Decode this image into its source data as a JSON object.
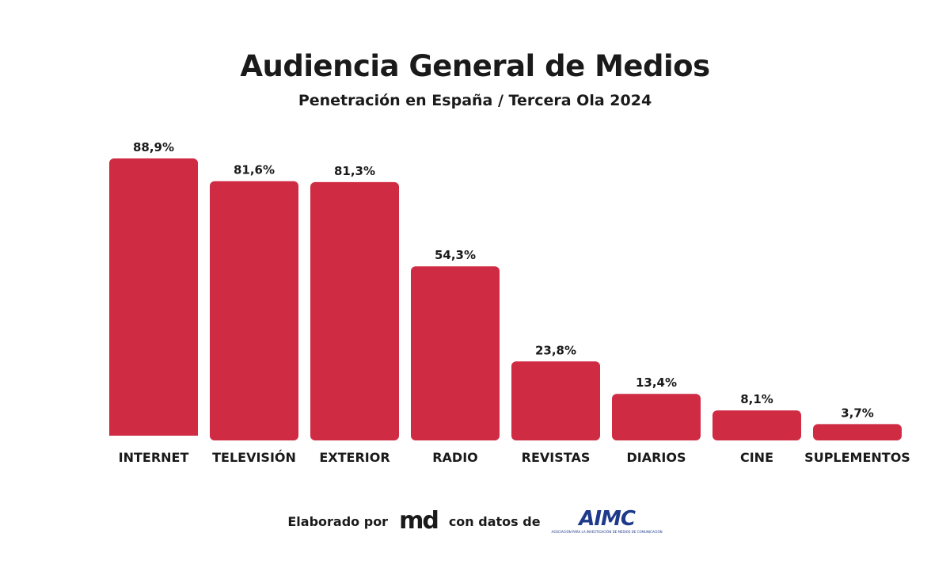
{
  "header": {
    "title": "Audiencia General de Medios",
    "subtitle": "Penetración en España / Tercera Ola 2024"
  },
  "footer": {
    "prefix": "Elaborado por",
    "md_logo": "md",
    "middle": "con datos de",
    "aimc_logo": "AIMC",
    "aimc_tagline": "ASOCIACIÓN PARA LA INVESTIGACIÓN DE MEDIOS DE COMUNICACIÓN"
  },
  "colors": {
    "bar": "#cf2b43",
    "text": "#1a1a1a",
    "aimc": "#1f3a8a"
  },
  "chart_data": {
    "type": "bar",
    "title": "Audiencia General de Medios",
    "subtitle": "Penetración en España / Tercera Ola 2024",
    "categories": [
      "INTERNET",
      "TELEVISIÓN",
      "EXTERIOR",
      "RADIO",
      "REVISTAS",
      "DIARIOS",
      "CINE",
      "SUPLEMENTOS"
    ],
    "values": [
      88.9,
      81.6,
      81.3,
      54.3,
      23.8,
      13.4,
      8.1,
      3.7
    ],
    "data_labels": [
      "88,9%",
      "81,6%",
      "81,3%",
      "54,3%",
      "23,8%",
      "13,4%",
      "8,1%",
      "3,7%"
    ],
    "xlabel": "",
    "ylabel": "",
    "ylim": [
      0,
      100
    ],
    "grid": false,
    "legend": "none"
  }
}
